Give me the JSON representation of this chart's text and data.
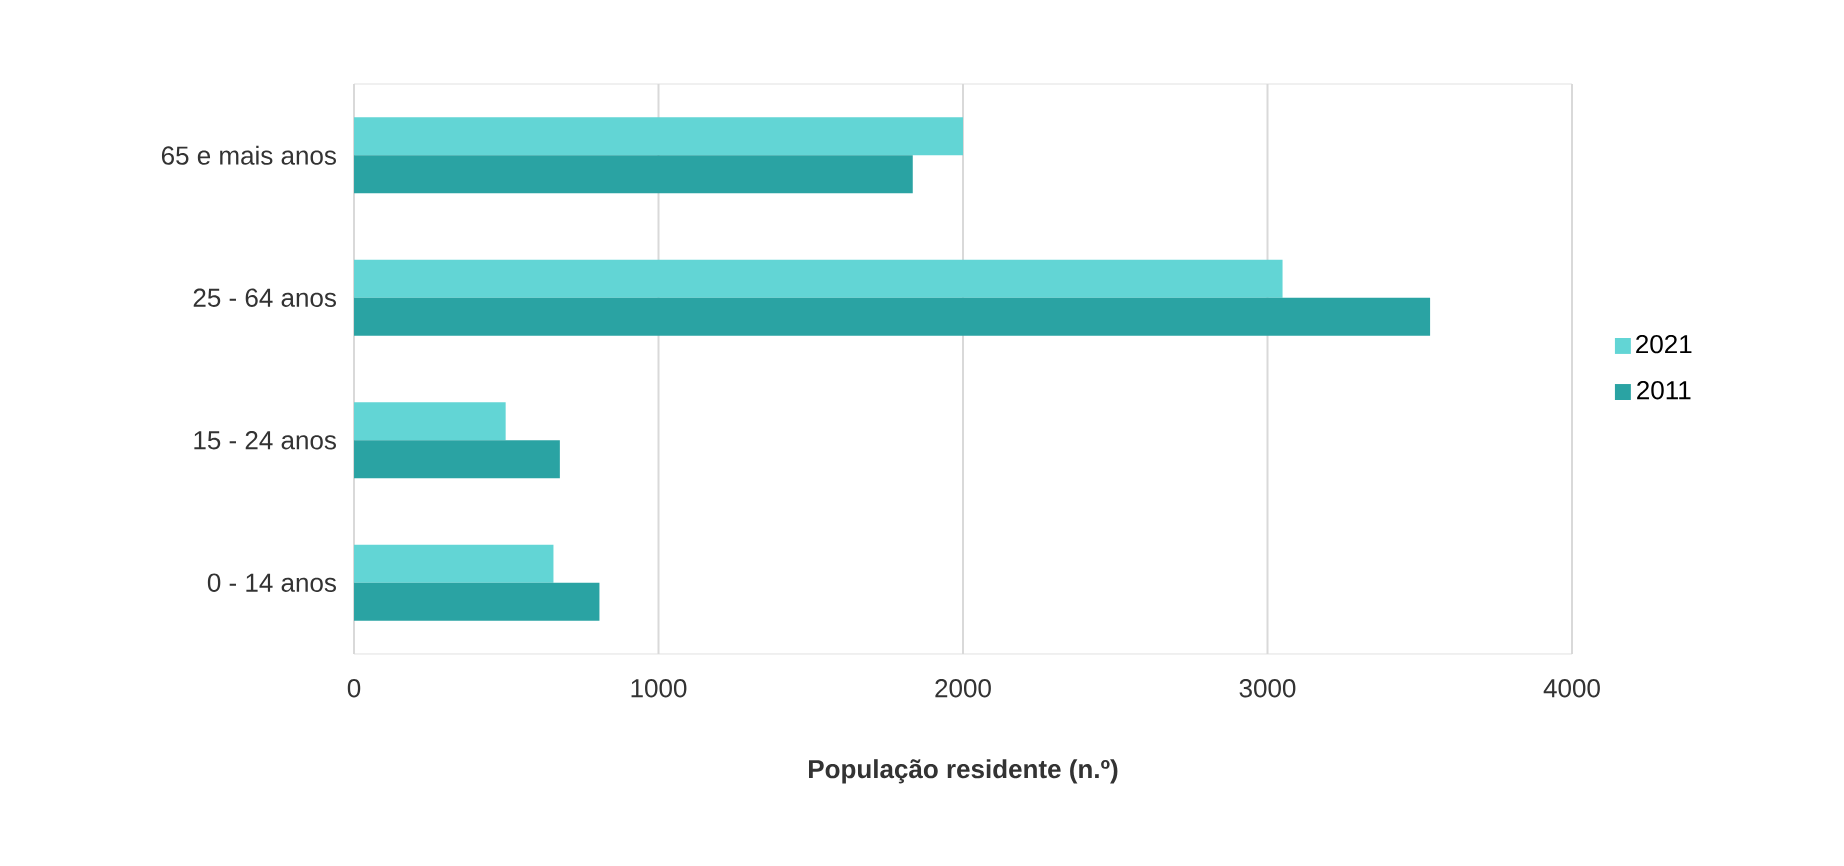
{
  "chart_data": {
    "type": "bar",
    "orientation": "horizontal",
    "xlabel": "**População residente (n.º)**",
    "categories": [
      "65 e mais anos",
      "25 - 64 anos",
      "15 - 24 anos",
      "0 - 14 anos"
    ],
    "series": [
      {
        "name": "2021",
        "color": "#62d5d5",
        "values": [
          2000,
          3050,
          498,
          655
        ]
      },
      {
        "name": "2011",
        "color": "#2aa3a3",
        "values": [
          1835,
          3534,
          676,
          806
        ]
      }
    ],
    "xlim": [
      0,
      4000
    ],
    "xticks": [
      0,
      1000,
      2000,
      3000,
      4000
    ],
    "grid": "x",
    "legend": "right"
  }
}
